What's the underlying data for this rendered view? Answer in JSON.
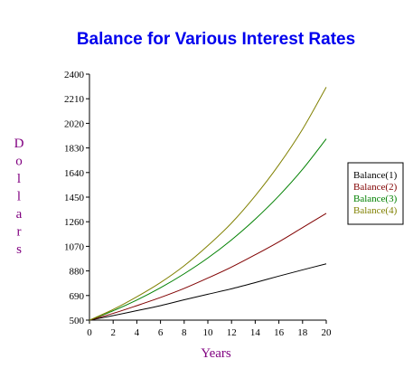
{
  "chart_data": {
    "type": "line",
    "title": "Balance for Various Interest Rates",
    "title_color": "#0000ee",
    "xlabel": "Years",
    "ylabel": "Dollars",
    "label_color": "#800080",
    "xlim": [
      0,
      20
    ],
    "ylim": [
      500,
      2400
    ],
    "x_ticks": [
      0,
      2,
      4,
      6,
      8,
      10,
      12,
      14,
      16,
      18,
      20
    ],
    "y_ticks": [
      500,
      690,
      880,
      1070,
      1260,
      1450,
      1640,
      1830,
      2020,
      2210,
      2400
    ],
    "grid": false,
    "legend_position": "right",
    "series": [
      {
        "name": "Balance(1)",
        "color": "#000000",
        "x": [
          0,
          2,
          4,
          6,
          8,
          10,
          12,
          14,
          16,
          18,
          20
        ],
        "y": [
          500,
          535,
          573,
          612,
          657,
          700,
          742,
          790,
          840,
          888,
          935
        ]
      },
      {
        "name": "Balance(2)",
        "color": "#800000",
        "x": [
          0,
          2,
          4,
          6,
          8,
          10,
          12,
          14,
          16,
          18,
          20
        ],
        "y": [
          500,
          552,
          612,
          675,
          745,
          825,
          910,
          1005,
          1105,
          1215,
          1325
        ]
      },
      {
        "name": "Balance(3)",
        "color": "#008000",
        "x": [
          0,
          2,
          4,
          6,
          8,
          10,
          12,
          14,
          16,
          18,
          20
        ],
        "y": [
          500,
          572,
          655,
          750,
          858,
          980,
          1120,
          1280,
          1460,
          1665,
          1900
        ]
      },
      {
        "name": "Balance(4)",
        "color": "#808000",
        "x": [
          0,
          2,
          4,
          6,
          8,
          10,
          12,
          14,
          16,
          18,
          20
        ],
        "y": [
          500,
          582,
          680,
          790,
          920,
          1075,
          1250,
          1460,
          1700,
          1975,
          2300
        ]
      }
    ]
  }
}
